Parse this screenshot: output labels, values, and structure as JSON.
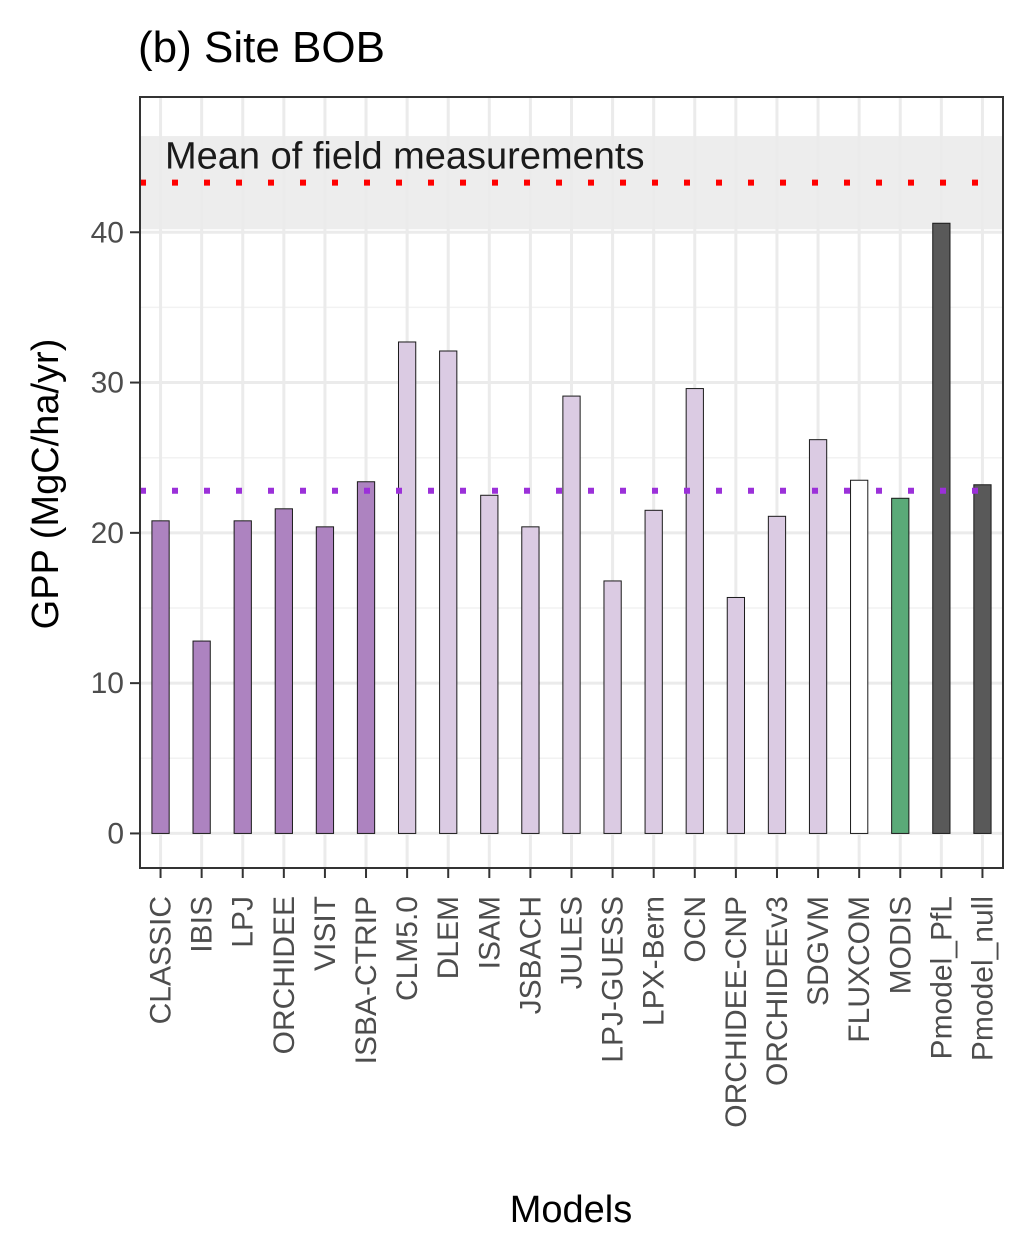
{
  "chart_data": {
    "type": "bar",
    "title": "(b) Site BOB",
    "xlabel": "Models",
    "ylabel": "GPP (MgC/ha/yr)",
    "ylim": [
      -2.3,
      49
    ],
    "yticks": [
      0,
      10,
      20,
      30,
      40
    ],
    "grid": true,
    "categories": [
      "CLASSIC",
      "IBIS",
      "LPJ",
      "ORCHIDEE",
      "VISIT",
      "ISBA-CTRIP",
      "CLM5.0",
      "DLEM",
      "ISAM",
      "JSBACH",
      "JULES",
      "LPJ-GUESS",
      "LPX-Bern",
      "OCN",
      "ORCHIDEE-CNP",
      "ORCHIDEEv3",
      "SDGVM",
      "FLUXCOM",
      "MODIS",
      "Pmodel_PfL",
      "Pmodel_null"
    ],
    "values": [
      20.8,
      12.8,
      20.8,
      21.6,
      20.4,
      23.4,
      32.7,
      32.1,
      22.5,
      20.4,
      29.1,
      16.8,
      21.5,
      29.6,
      15.7,
      21.1,
      26.2,
      23.5,
      22.3,
      40.6,
      23.2
    ],
    "bar_colors": [
      "#ad83c0",
      "#ad83c0",
      "#ad83c0",
      "#ad83c0",
      "#ad83c0",
      "#ad83c0",
      "#dbcbe3",
      "#dbcbe3",
      "#dbcbe3",
      "#dbcbe3",
      "#dbcbe3",
      "#dbcbe3",
      "#dbcbe3",
      "#dbcbe3",
      "#dbcbe3",
      "#dbcbe3",
      "#dbcbe3",
      "#ffffff",
      "#5aaa78",
      "#595959",
      "#595959"
    ],
    "reference_lines": [
      {
        "value": 43.3,
        "color": "#ff0000",
        "style": "dotted"
      },
      {
        "value": 22.8,
        "color": "#9b30d9",
        "style": "dotted"
      }
    ],
    "field_band": {
      "min": 40.2,
      "max": 46.4,
      "color": "#ebebeb"
    },
    "annotation": "Mean of field measurements"
  }
}
